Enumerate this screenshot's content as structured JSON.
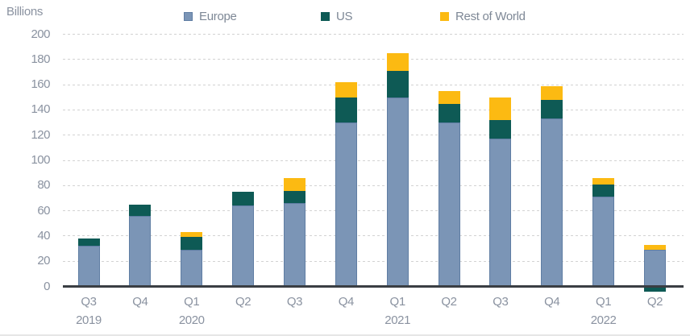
{
  "y_axis_title": "Billions",
  "legend": [
    {
      "label": "Europe",
      "color": "#7b95b6",
      "border": "#5f7da3"
    },
    {
      "label": "US",
      "color": "#0e5a55"
    },
    {
      "label": "Rest of World",
      "color": "#fcba12"
    }
  ],
  "chart_data": {
    "type": "bar",
    "stacked": true,
    "title": "",
    "xlabel": "",
    "ylabel": "Billions",
    "unit": "Billions",
    "ylim": [
      0,
      200
    ],
    "ytick_step": 20,
    "grid": "horizontal-dashed",
    "legend_position": "top",
    "categories": [
      "Q3 2019",
      "Q4 2019",
      "Q1 2020",
      "Q2 2020",
      "Q3 2020",
      "Q4 2020",
      "Q1 2021",
      "Q2 2021",
      "Q3 2021",
      "Q4 2021",
      "Q1 2022",
      "Q2 2022"
    ],
    "x_quarters": [
      "Q3",
      "Q4",
      "Q1",
      "Q2",
      "Q3",
      "Q4",
      "Q1",
      "Q2",
      "Q3",
      "Q4",
      "Q1",
      "Q2"
    ],
    "x_years": {
      "0": "2019",
      "2": "2020",
      "6": "2021",
      "10": "2022"
    },
    "series": [
      {
        "name": "Europe",
        "color": "#7b95b6",
        "border": "#5f7da3",
        "values": [
          32,
          56,
          29,
          64,
          66,
          130,
          150,
          130,
          117,
          133,
          71,
          29
        ]
      },
      {
        "name": "US",
        "color": "#0e5a55",
        "values": [
          6,
          9,
          10,
          11,
          10,
          20,
          21,
          15,
          15,
          15,
          10,
          -4
        ]
      },
      {
        "name": "Rest of World",
        "color": "#fcba12",
        "values": [
          0,
          0,
          4,
          -1,
          10,
          12,
          14,
          10,
          18,
          11,
          5,
          4
        ]
      }
    ],
    "approx_totals_visible": [
      38,
      65,
      43,
      75,
      86,
      162,
      185,
      155,
      150,
      159,
      86,
      33
    ]
  }
}
